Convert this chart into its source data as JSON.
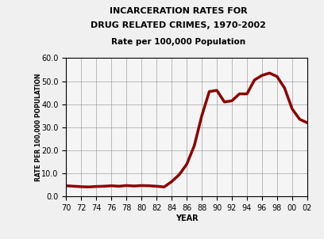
{
  "title_line1": "INCARCERATION RATES FOR",
  "title_line2": "DRUG RELATED CRIMES, 1970-2002",
  "subtitle": "Rate per 100,000 Population",
  "xlabel": "YEAR",
  "ylabel": "RATE PER 100,000 POPULATION",
  "line_color": "#8B0000",
  "line_width": 2.5,
  "background_color": "#f5f5f5",
  "ylim": [
    0,
    60.0
  ],
  "xlim": [
    1970,
    2002
  ],
  "yticks": [
    0.0,
    10.0,
    20.0,
    30.0,
    40.0,
    50.0,
    60.0
  ],
  "xticks": [
    70,
    72,
    74,
    76,
    78,
    80,
    82,
    84,
    86,
    88,
    90,
    92,
    94,
    96,
    98,
    100,
    102
  ],
  "xtick_labels": [
    "70",
    "72",
    "74",
    "76",
    "78",
    "80",
    "82",
    "84",
    "86",
    "88",
    "90",
    "92",
    "94",
    "96",
    "98",
    "00",
    "02"
  ],
  "years": [
    1970,
    1971,
    1972,
    1973,
    1974,
    1975,
    1976,
    1977,
    1978,
    1979,
    1980,
    1981,
    1982,
    1983,
    1984,
    1985,
    1986,
    1987,
    1988,
    1989,
    1990,
    1991,
    1992,
    1993,
    1994,
    1995,
    1996,
    1997,
    1998,
    1999,
    2000,
    2001,
    2002
  ],
  "values": [
    4.7,
    4.5,
    4.3,
    4.2,
    4.4,
    4.5,
    4.7,
    4.5,
    4.8,
    4.6,
    4.8,
    4.7,
    4.5,
    4.2,
    6.5,
    9.5,
    14.0,
    22.0,
    35.0,
    45.5,
    46.0,
    41.0,
    41.5,
    44.5,
    44.5,
    50.5,
    52.5,
    53.5,
    52.0,
    47.0,
    38.0,
    33.5,
    32.0
  ]
}
